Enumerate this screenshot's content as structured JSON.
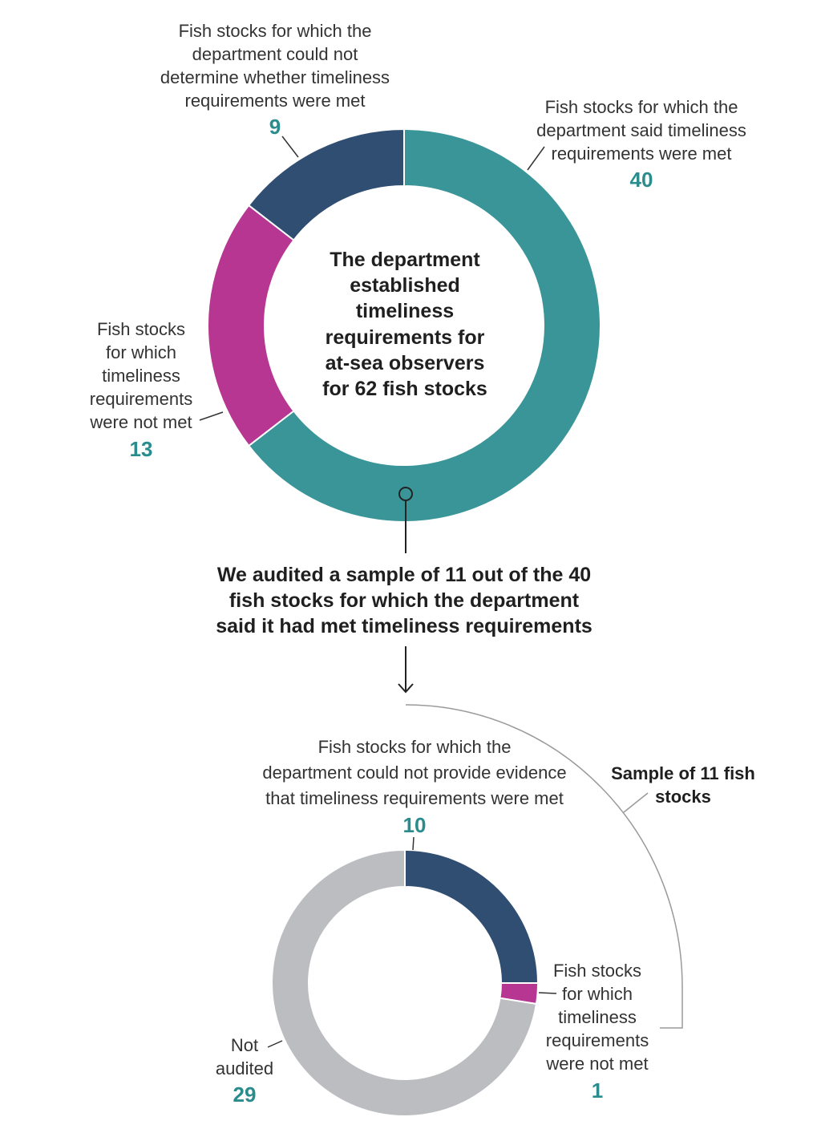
{
  "chart_data": [
    {
      "type": "pie",
      "variant": "donut",
      "center_text": [
        "The department",
        "established",
        "timeliness",
        "requirements for",
        "at-sea observers",
        "for 62 fish stocks"
      ],
      "series": [
        {
          "label_lines": [
            "Fish stocks for which the",
            "department said timeliness",
            "requirements were met"
          ],
          "value": 40,
          "color": "#3a9598"
        },
        {
          "label_lines": [
            "Fish stocks",
            "for which",
            "timeliness",
            "requirements",
            "were not met"
          ],
          "value": 13,
          "color": "#b73691"
        },
        {
          "label_lines": [
            "Fish stocks for which the",
            "department could not",
            "determine whether timeliness",
            "requirements were met"
          ],
          "value": 9,
          "color": "#304e72"
        }
      ]
    },
    {
      "type": "pie",
      "variant": "donut",
      "series": [
        {
          "label_lines": [
            "Fish stocks for which the",
            "department could not provide evidence",
            "that timeliness requirements were met"
          ],
          "value": 10,
          "color": "#304e72"
        },
        {
          "label_lines": [
            "Fish stocks",
            "for which",
            "timeliness",
            "requirements",
            "were not met"
          ],
          "value": 1,
          "color": "#b73691"
        },
        {
          "label_lines": [
            "Not",
            "audited"
          ],
          "value": 29,
          "color": "#bcbdc0"
        }
      ]
    }
  ],
  "connector_text": [
    "We audited a sample of 11 out of the 40",
    "fish stocks for which the department",
    "said it had met timeliness requirements"
  ],
  "sample_bracket_lines": [
    "Sample of 11 fish",
    "stocks"
  ]
}
